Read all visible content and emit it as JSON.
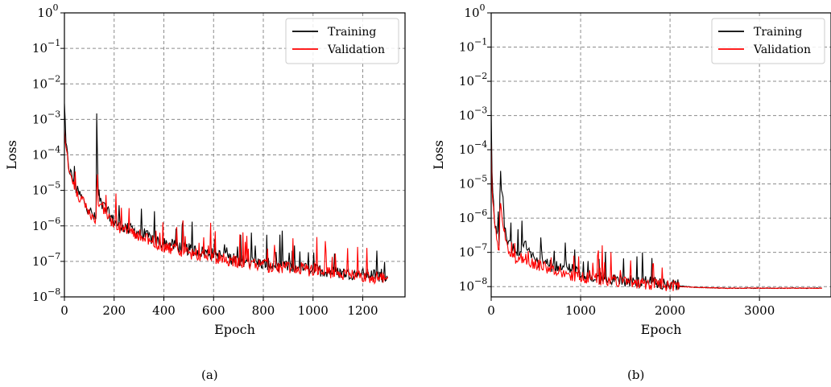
{
  "chart_data": [
    {
      "id": "a",
      "type": "line",
      "caption": "(a)",
      "xlabel": "Epoch",
      "ylabel": "Loss",
      "yscale": "log",
      "xlim": [
        0,
        1370
      ],
      "ylim": [
        1e-08,
        1
      ],
      "xticks": [
        0,
        200,
        400,
        600,
        800,
        1000,
        1200
      ],
      "xtick_labels": [
        "0",
        "200",
        "400",
        "600",
        "800",
        "1000",
        "1200"
      ],
      "yticks_exp": [
        -8,
        -7,
        -6,
        -5,
        -4,
        -3,
        -2,
        -1,
        0
      ],
      "ytick_base": "10",
      "grid": true,
      "legend_position": "top-right",
      "series": [
        {
          "name": "Training",
          "color": "#000000",
          "x": [
            0,
            5,
            20,
            50,
            80,
            110,
            128,
            130,
            135,
            150,
            200,
            250,
            300,
            350,
            400,
            450,
            500,
            600,
            700,
            800,
            900,
            1000,
            1100,
            1200,
            1300
          ],
          "y": [
            0.003,
            0.0002,
            3.5e-05,
            9e-06,
            4.5e-06,
            2e-06,
            1.3e-06,
            0.0012,
            8e-06,
            4e-06,
            1.2e-06,
            8e-07,
            6e-07,
            4e-07,
            3e-07,
            2.5e-07,
            2e-07,
            1.5e-07,
            1e-07,
            8e-08,
            6.5e-08,
            5.5e-08,
            4.5e-08,
            4e-08,
            3.5e-08
          ]
        },
        {
          "name": "Validation",
          "color": "#ff0000",
          "x": [
            0,
            5,
            20,
            50,
            80,
            110,
            128,
            130,
            135,
            150,
            200,
            250,
            300,
            350,
            400,
            450,
            500,
            600,
            700,
            800,
            900,
            1000,
            1100,
            1200,
            1300
          ],
          "y": [
            0.0005,
            0.00015,
            3e-05,
            8e-06,
            4e-06,
            1.8e-06,
            1.2e-06,
            7e-06,
            5e-06,
            3.5e-06,
            1e-06,
            7e-07,
            5e-07,
            3.5e-07,
            2.5e-07,
            2e-07,
            1.6e-07,
            1.2e-07,
            9e-08,
            7e-08,
            6e-08,
            5e-08,
            4e-08,
            3.5e-08,
            3e-08
          ]
        }
      ]
    },
    {
      "id": "b",
      "type": "line",
      "caption": "(b)",
      "xlabel": "Epoch",
      "ylabel": "Loss",
      "yscale": "log",
      "xlim": [
        0,
        3800
      ],
      "ylim": [
        5e-09,
        1
      ],
      "xticks": [
        0,
        1000,
        2000,
        3000
      ],
      "xtick_labels": [
        "0",
        "1000",
        "2000",
        "3000"
      ],
      "yticks_exp": [
        -8,
        -7,
        -6,
        -5,
        -4,
        -3,
        -2,
        -1,
        0
      ],
      "ytick_base": "10",
      "grid": true,
      "legend_position": "top-right",
      "series": [
        {
          "name": "Training",
          "color": "#000000",
          "x": [
            0,
            10,
            40,
            90,
            100,
            150,
            200,
            300,
            380,
            500,
            700,
            860,
            1000,
            1300,
            1600,
            2000,
            2300,
            2600,
            3000,
            3700
          ],
          "y": [
            0.001,
            1e-05,
            8e-07,
            1.5e-07,
            2.5e-05,
            5e-07,
            1.5e-07,
            8e-08,
            2e-07,
            5e-08,
            3.5e-08,
            4e-08,
            1.8e-08,
            1.5e-08,
            1.3e-08,
            1.1e-08,
            9.5e-09,
            9e-09,
            9e-09,
            9e-09
          ]
        },
        {
          "name": "Validation",
          "color": "#ff0000",
          "x": [
            0,
            10,
            40,
            90,
            100,
            150,
            200,
            300,
            380,
            500,
            700,
            860,
            1000,
            1300,
            1600,
            2000,
            2300,
            2600,
            3000,
            3700
          ],
          "y": [
            0.0001,
            5e-06,
            5e-07,
            8e-08,
            3e-06,
            3e-07,
            8e-08,
            5e-08,
            6e-08,
            4e-08,
            2.8e-08,
            2e-08,
            1.7e-08,
            1.4e-08,
            1.2e-08,
            1e-08,
            9.5e-09,
            9e-09,
            9e-09,
            9e-09
          ]
        }
      ]
    }
  ]
}
